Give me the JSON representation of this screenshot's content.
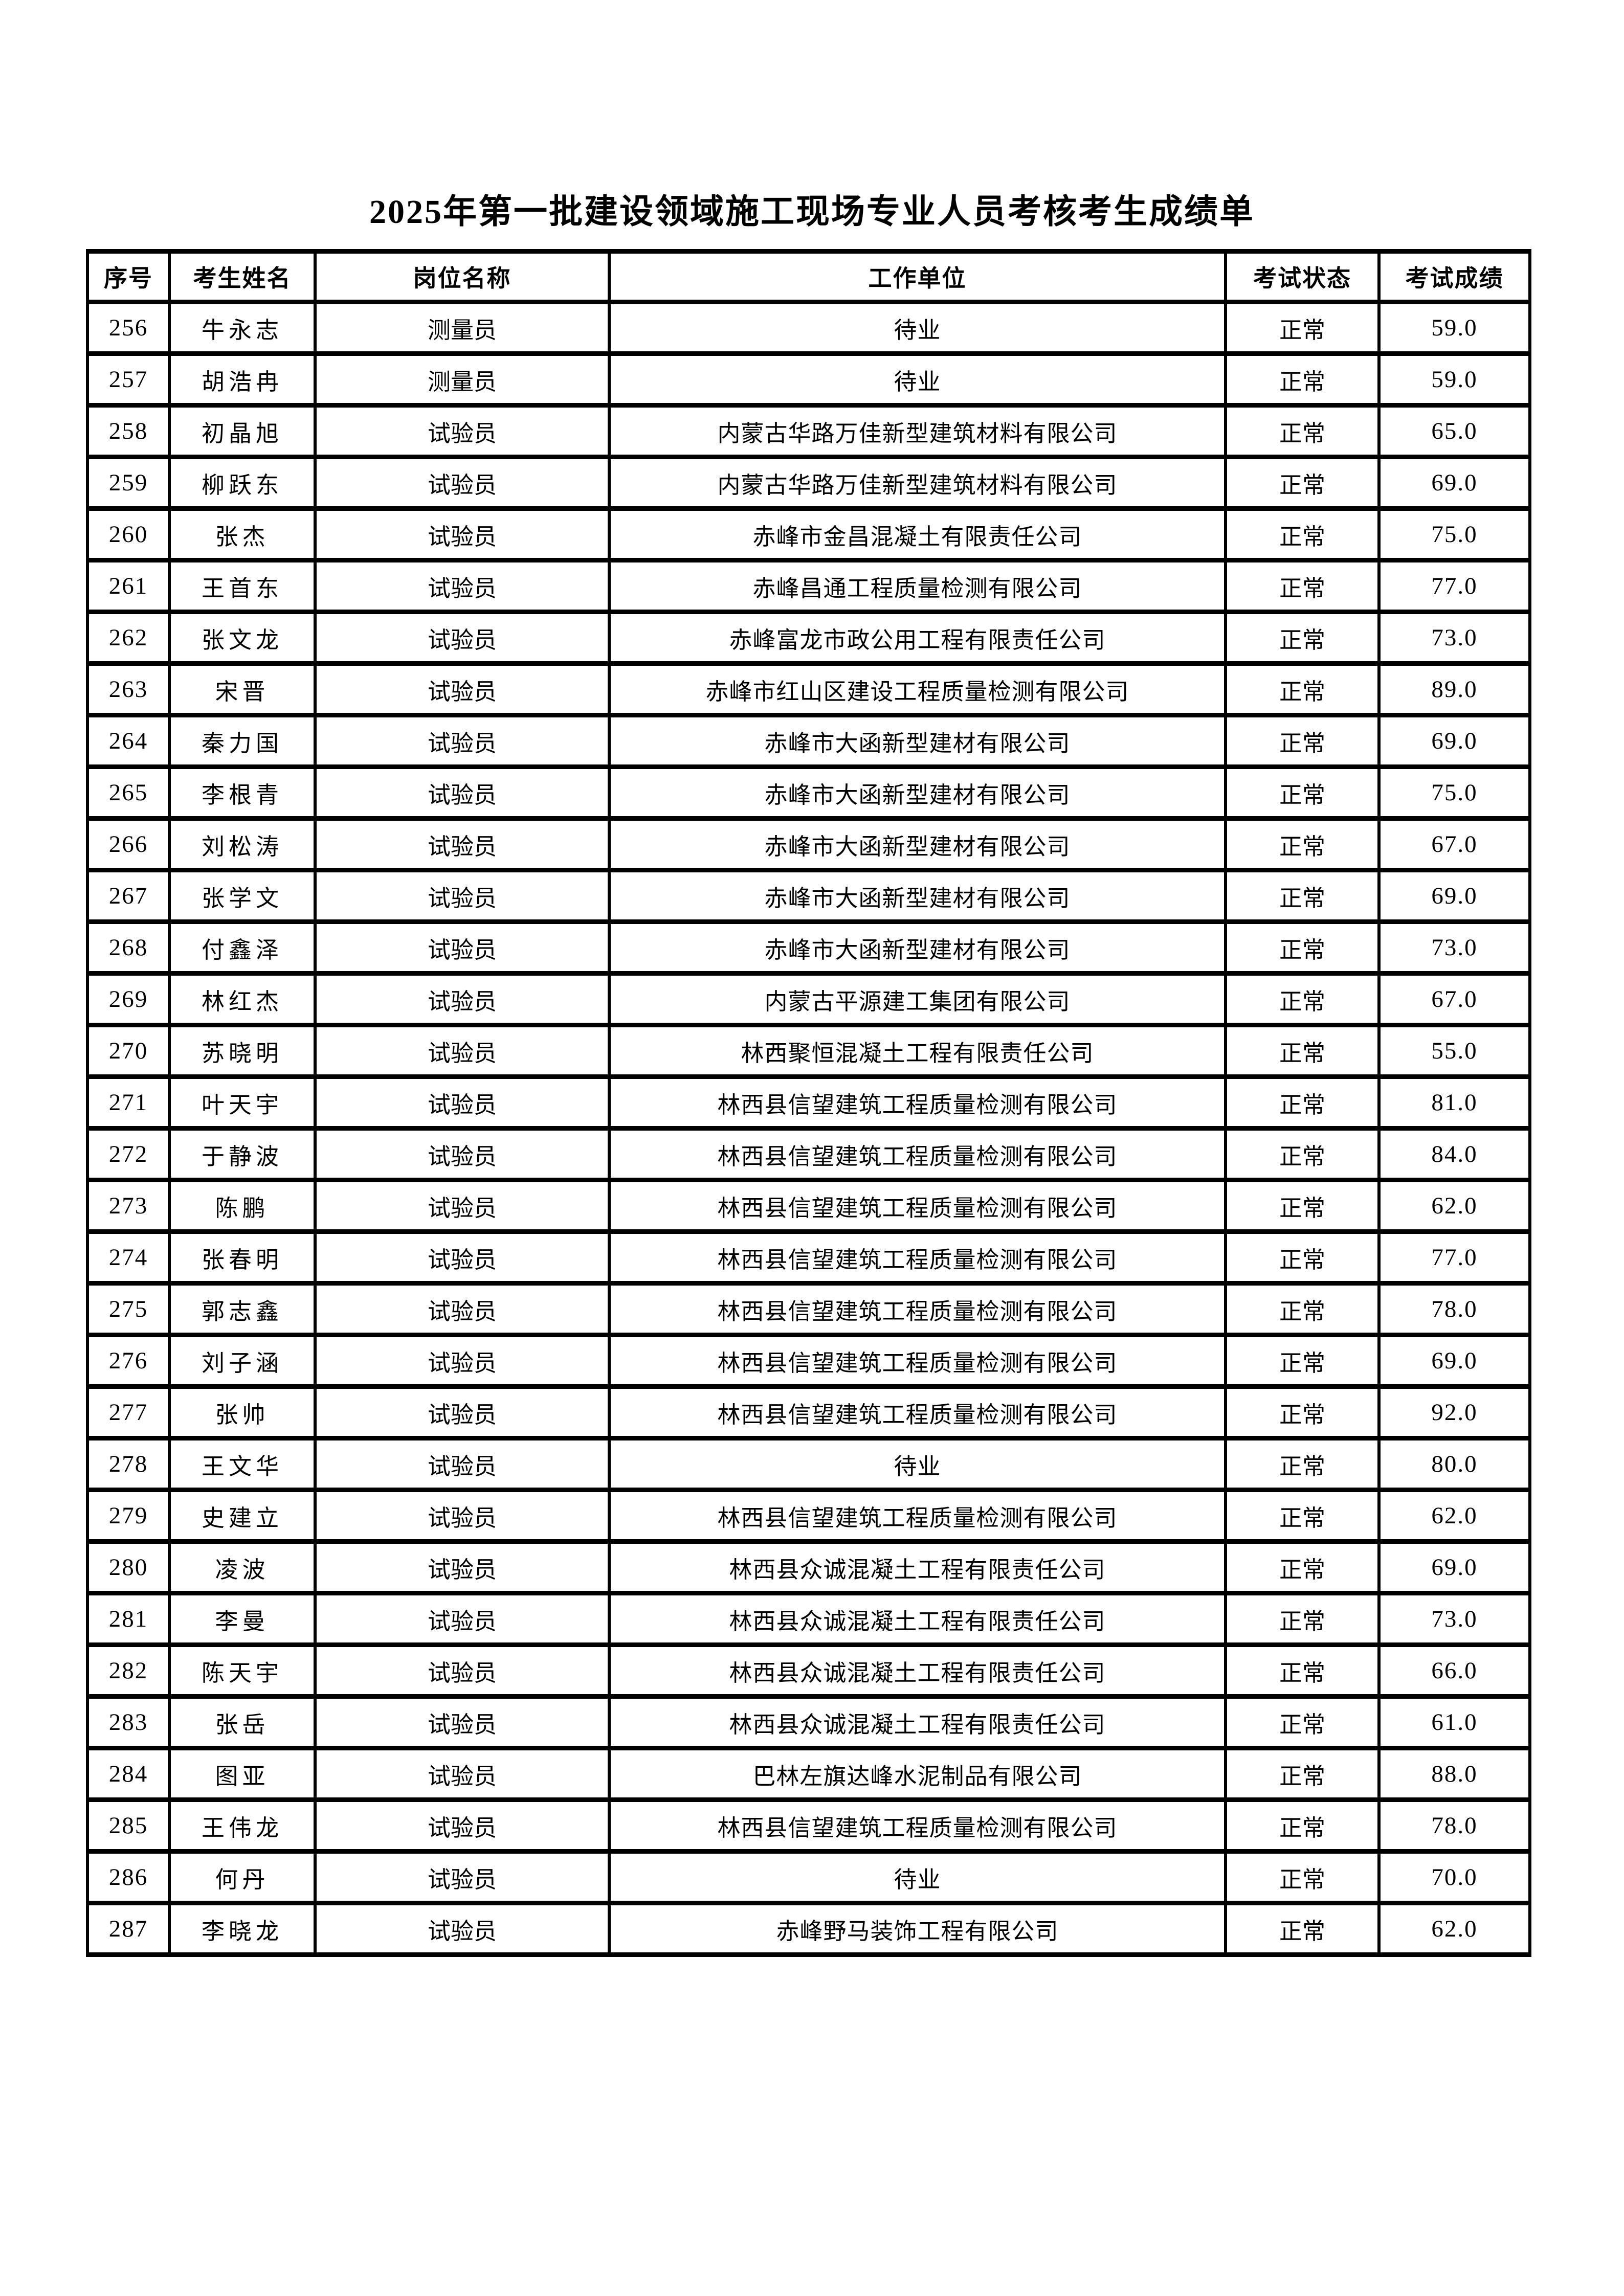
{
  "page": {
    "title": "2025年第一批建设领域施工现场专业人员考核考生成绩单"
  },
  "table": {
    "columns": [
      "序号",
      "考生姓名",
      "岗位名称",
      "工作单位",
      "考试状态",
      "考试成绩"
    ],
    "rows": [
      {
        "no": "256",
        "name": "牛永志",
        "position": "测量员",
        "employer": "待业",
        "status": "正常",
        "score": "59.0"
      },
      {
        "no": "257",
        "name": "胡浩冉",
        "position": "测量员",
        "employer": "待业",
        "status": "正常",
        "score": "59.0"
      },
      {
        "no": "258",
        "name": "初晶旭",
        "position": "试验员",
        "employer": "内蒙古华路万佳新型建筑材料有限公司",
        "status": "正常",
        "score": "65.0"
      },
      {
        "no": "259",
        "name": "柳跃东",
        "position": "试验员",
        "employer": "内蒙古华路万佳新型建筑材料有限公司",
        "status": "正常",
        "score": "69.0"
      },
      {
        "no": "260",
        "name": "张杰",
        "position": "试验员",
        "employer": "赤峰市金昌混凝土有限责任公司",
        "status": "正常",
        "score": "75.0"
      },
      {
        "no": "261",
        "name": "王首东",
        "position": "试验员",
        "employer": "赤峰昌通工程质量检测有限公司",
        "status": "正常",
        "score": "77.0"
      },
      {
        "no": "262",
        "name": "张文龙",
        "position": "试验员",
        "employer": "赤峰富龙市政公用工程有限责任公司",
        "status": "正常",
        "score": "73.0"
      },
      {
        "no": "263",
        "name": "宋晋",
        "position": "试验员",
        "employer": "赤峰市红山区建设工程质量检测有限公司",
        "status": "正常",
        "score": "89.0"
      },
      {
        "no": "264",
        "name": "秦力国",
        "position": "试验员",
        "employer": "赤峰市大函新型建材有限公司",
        "status": "正常",
        "score": "69.0"
      },
      {
        "no": "265",
        "name": "李根青",
        "position": "试验员",
        "employer": "赤峰市大函新型建材有限公司",
        "status": "正常",
        "score": "75.0"
      },
      {
        "no": "266",
        "name": "刘松涛",
        "position": "试验员",
        "employer": "赤峰市大函新型建材有限公司",
        "status": "正常",
        "score": "67.0"
      },
      {
        "no": "267",
        "name": "张学文",
        "position": "试验员",
        "employer": "赤峰市大函新型建材有限公司",
        "status": "正常",
        "score": "69.0"
      },
      {
        "no": "268",
        "name": "付鑫泽",
        "position": "试验员",
        "employer": "赤峰市大函新型建材有限公司",
        "status": "正常",
        "score": "73.0"
      },
      {
        "no": "269",
        "name": "林红杰",
        "position": "试验员",
        "employer": "内蒙古平源建工集团有限公司",
        "status": "正常",
        "score": "67.0"
      },
      {
        "no": "270",
        "name": "苏晓明",
        "position": "试验员",
        "employer": "林西聚恒混凝土工程有限责任公司",
        "status": "正常",
        "score": "55.0"
      },
      {
        "no": "271",
        "name": "叶天宇",
        "position": "试验员",
        "employer": "林西县信望建筑工程质量检测有限公司",
        "status": "正常",
        "score": "81.0"
      },
      {
        "no": "272",
        "name": "于静波",
        "position": "试验员",
        "employer": "林西县信望建筑工程质量检测有限公司",
        "status": "正常",
        "score": "84.0"
      },
      {
        "no": "273",
        "name": "陈鹏",
        "position": "试验员",
        "employer": "林西县信望建筑工程质量检测有限公司",
        "status": "正常",
        "score": "62.0"
      },
      {
        "no": "274",
        "name": "张春明",
        "position": "试验员",
        "employer": "林西县信望建筑工程质量检测有限公司",
        "status": "正常",
        "score": "77.0"
      },
      {
        "no": "275",
        "name": "郭志鑫",
        "position": "试验员",
        "employer": "林西县信望建筑工程质量检测有限公司",
        "status": "正常",
        "score": "78.0"
      },
      {
        "no": "276",
        "name": "刘子涵",
        "position": "试验员",
        "employer": "林西县信望建筑工程质量检测有限公司",
        "status": "正常",
        "score": "69.0"
      },
      {
        "no": "277",
        "name": "张帅",
        "position": "试验员",
        "employer": "林西县信望建筑工程质量检测有限公司",
        "status": "正常",
        "score": "92.0"
      },
      {
        "no": "278",
        "name": "王文华",
        "position": "试验员",
        "employer": "待业",
        "status": "正常",
        "score": "80.0"
      },
      {
        "no": "279",
        "name": "史建立",
        "position": "试验员",
        "employer": "林西县信望建筑工程质量检测有限公司",
        "status": "正常",
        "score": "62.0"
      },
      {
        "no": "280",
        "name": "凌波",
        "position": "试验员",
        "employer": "林西县众诚混凝土工程有限责任公司",
        "status": "正常",
        "score": "69.0"
      },
      {
        "no": "281",
        "name": "李曼",
        "position": "试验员",
        "employer": "林西县众诚混凝土工程有限责任公司",
        "status": "正常",
        "score": "73.0"
      },
      {
        "no": "282",
        "name": "陈天宇",
        "position": "试验员",
        "employer": "林西县众诚混凝土工程有限责任公司",
        "status": "正常",
        "score": "66.0"
      },
      {
        "no": "283",
        "name": "张岳",
        "position": "试验员",
        "employer": "林西县众诚混凝土工程有限责任公司",
        "status": "正常",
        "score": "61.0"
      },
      {
        "no": "284",
        "name": "图亚",
        "position": "试验员",
        "employer": "巴林左旗达峰水泥制品有限公司",
        "status": "正常",
        "score": "88.0"
      },
      {
        "no": "285",
        "name": "王伟龙",
        "position": "试验员",
        "employer": "林西县信望建筑工程质量检测有限公司",
        "status": "正常",
        "score": "78.0"
      },
      {
        "no": "286",
        "name": "何丹",
        "position": "试验员",
        "employer": "待业",
        "status": "正常",
        "score": "70.0"
      },
      {
        "no": "287",
        "name": "李晓龙",
        "position": "试验员",
        "employer": "赤峰野马装饰工程有限公司",
        "status": "正常",
        "score": "62.0"
      }
    ]
  }
}
